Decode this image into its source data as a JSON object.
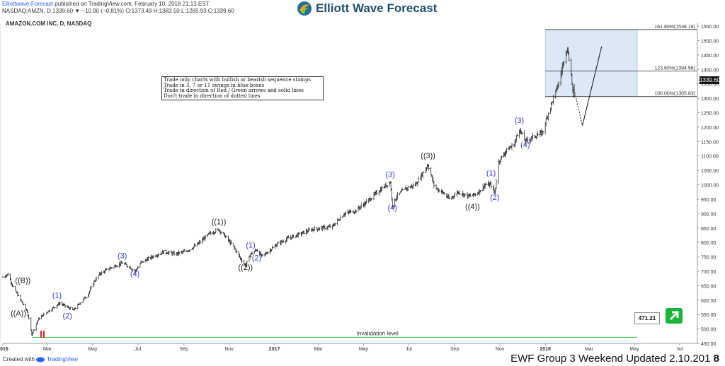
{
  "header": {
    "publisher": "Elliottwave-Forecast",
    "published_text": " published on TradingView.com, February 10, 2018 21:13 EST",
    "ohlc": "NASDAQ:AMZN, D  1339.60  ▼ −10.90 (−0.81%)  O:1373.49  H:1383.50  L:1265.93  C:1339.60",
    "symbol_title": "AMAZON.COM INC, D, NASDAQ"
  },
  "logo": {
    "text": "Elliott Wave Forecast",
    "icon": "ewf-swirl-logo-icon"
  },
  "notes": [
    "Trade only charts with bullish or bearish sequence stamps",
    "Trade in 3, 7 or 11 swings in blue boxes",
    "Trade in direction of Red / Green arrows and solid lines",
    "Don't trade in direction of dotted lines"
  ],
  "current_price": "1339.60",
  "invalidation": {
    "label": "Invalidation level",
    "value": "471.21"
  },
  "footer": {
    "created_with": "Created with",
    "tradingview": "TradingView",
    "update_text": "EWF Group 3 Weekend Updated 2.10.201",
    "page_number": "8"
  },
  "colors": {
    "wave_blue": "#3a3ae0",
    "wave_black": "#222222",
    "box_fill": "#dce8f5",
    "invalidation_line": "#34c234",
    "price_bar": "#111111"
  },
  "chart_data": {
    "type": "ohlc",
    "title": "AMAZON.COM INC, D, NASDAQ",
    "ylim": [
      450,
      1560
    ],
    "y_ticks": [
      450,
      500,
      550,
      600,
      650,
      700,
      750,
      800,
      850,
      900,
      950,
      1000,
      1050,
      1100,
      1150,
      1200,
      1250,
      1300,
      1350,
      1400,
      1450,
      1500,
      1550
    ],
    "x_ticks": [
      "2016",
      "Mar",
      "May",
      "Jul",
      "Sep",
      "Nov",
      "2017",
      "Mar",
      "May",
      "Jul",
      "Sep",
      "Nov",
      "2018",
      "Mar",
      "May",
      "Jul"
    ],
    "x_range": [
      "2016-01-01",
      "2018-07-25"
    ],
    "price_path": [
      [
        "2016-01-01",
        680
      ],
      [
        "2016-01-08",
        690
      ],
      [
        "2016-01-15",
        645
      ],
      [
        "2016-01-25",
        600
      ],
      [
        "2016-02-03",
        560
      ],
      [
        "2016-02-09",
        482
      ],
      [
        "2016-02-12",
        500
      ],
      [
        "2016-02-18",
        535
      ],
      [
        "2016-03-01",
        560
      ],
      [
        "2016-03-10",
        575
      ],
      [
        "2016-03-18",
        590
      ],
      [
        "2016-03-28",
        575
      ],
      [
        "2016-04-05",
        565
      ],
      [
        "2016-04-14",
        590
      ],
      [
        "2016-04-25",
        620
      ],
      [
        "2016-05-02",
        660
      ],
      [
        "2016-05-10",
        690
      ],
      [
        "2016-05-20",
        705
      ],
      [
        "2016-06-01",
        720
      ],
      [
        "2016-06-10",
        728
      ],
      [
        "2016-06-20",
        715
      ],
      [
        "2016-06-27",
        698
      ],
      [
        "2016-07-05",
        730
      ],
      [
        "2016-07-20",
        750
      ],
      [
        "2016-08-05",
        768
      ],
      [
        "2016-08-20",
        760
      ],
      [
        "2016-09-05",
        770
      ],
      [
        "2016-09-20",
        795
      ],
      [
        "2016-10-05",
        830
      ],
      [
        "2016-10-18",
        845
      ],
      [
        "2016-10-27",
        820
      ],
      [
        "2016-11-07",
        785
      ],
      [
        "2016-11-16",
        745
      ],
      [
        "2016-11-23",
        720
      ],
      [
        "2016-11-30",
        760
      ],
      [
        "2016-12-08",
        775
      ],
      [
        "2016-12-15",
        752
      ],
      [
        "2016-12-22",
        765
      ],
      [
        "2017-01-05",
        795
      ],
      [
        "2017-01-20",
        815
      ],
      [
        "2017-02-05",
        830
      ],
      [
        "2017-02-20",
        845
      ],
      [
        "2017-03-05",
        850
      ],
      [
        "2017-03-20",
        855
      ],
      [
        "2017-04-05",
        900
      ],
      [
        "2017-04-20",
        910
      ],
      [
        "2017-05-05",
        940
      ],
      [
        "2017-05-20",
        975
      ],
      [
        "2017-06-06",
        1010
      ],
      [
        "2017-06-09",
        930
      ],
      [
        "2017-06-15",
        960
      ],
      [
        "2017-06-25",
        985
      ],
      [
        "2017-07-10",
        1000
      ],
      [
        "2017-07-27",
        1070
      ],
      [
        "2017-08-05",
        990
      ],
      [
        "2017-08-15",
        975
      ],
      [
        "2017-08-25",
        950
      ],
      [
        "2017-09-05",
        975
      ],
      [
        "2017-09-20",
        960
      ],
      [
        "2017-10-01",
        970
      ],
      [
        "2017-10-12",
        1000
      ],
      [
        "2017-10-20",
        1000
      ],
      [
        "2017-10-25",
        970
      ],
      [
        "2017-10-30",
        1080
      ],
      [
        "2017-11-10",
        1120
      ],
      [
        "2017-11-20",
        1140
      ],
      [
        "2017-11-27",
        1195
      ],
      [
        "2017-12-05",
        1150
      ],
      [
        "2017-12-15",
        1165
      ],
      [
        "2017-12-28",
        1180
      ],
      [
        "2018-01-05",
        1250
      ],
      [
        "2018-01-12",
        1300
      ],
      [
        "2018-01-20",
        1360
      ],
      [
        "2018-01-29",
        1470
      ],
      [
        "2018-02-01",
        1460
      ],
      [
        "2018-02-05",
        1380
      ],
      [
        "2018-02-08",
        1300
      ],
      [
        "2018-02-09",
        1339.6
      ]
    ],
    "fib_box": {
      "x_start": "2018-01-01",
      "x_end": "2018-05-05"
    },
    "fib_levels": [
      {
        "label": "161.80%(1538.18)",
        "value": 1538.18
      },
      {
        "label": "123.60%(1394.56)",
        "value": 1394.56
      },
      {
        "label": "100.00%(1305.83)",
        "value": 1305.83
      }
    ],
    "projection": {
      "dotted": [
        [
          "2018-02-08",
          1339.6
        ],
        [
          "2018-02-20",
          1205
        ]
      ],
      "solid": [
        [
          "2018-02-20",
          1205
        ],
        [
          "2018-03-18",
          1480
        ]
      ]
    },
    "invalidation_level": {
      "value": 471.21,
      "x_start": "2016-02-09",
      "x_end": "2018-05-05"
    },
    "wave_labels": [
      {
        "text": "((B))",
        "x": "2016-01-28",
        "y": 660,
        "color": "black"
      },
      {
        "text": "((A))",
        "x": "2016-01-22",
        "y": 545,
        "color": "black"
      },
      {
        "text": "(1)",
        "x": "2016-03-14",
        "y": 608,
        "color": "blue"
      },
      {
        "text": "(2)",
        "x": "2016-03-28",
        "y": 537,
        "color": "blue"
      },
      {
        "text": "(3)",
        "x": "2016-06-10",
        "y": 745,
        "color": "blue"
      },
      {
        "text": "(4)",
        "x": "2016-06-27",
        "y": 683,
        "color": "blue"
      },
      {
        "text": "((1))",
        "x": "2016-10-18",
        "y": 863,
        "color": "black"
      },
      {
        "text": "(1)",
        "x": "2016-11-30",
        "y": 782,
        "color": "blue"
      },
      {
        "text": "(2)",
        "x": "2016-12-08",
        "y": 738,
        "color": "blue"
      },
      {
        "text": "((2))",
        "x": "2016-11-23",
        "y": 705,
        "color": "black"
      },
      {
        "text": "(3)",
        "x": "2017-06-06",
        "y": 1027,
        "color": "blue"
      },
      {
        "text": "(4)",
        "x": "2017-06-09",
        "y": 912,
        "color": "blue"
      },
      {
        "text": "((3))",
        "x": "2017-07-27",
        "y": 1092,
        "color": "black"
      },
      {
        "text": "((4))",
        "x": "2017-09-25",
        "y": 915,
        "color": "black"
      },
      {
        "text": "(1)",
        "x": "2017-10-20",
        "y": 1032,
        "color": "blue"
      },
      {
        "text": "(2)",
        "x": "2017-10-25",
        "y": 948,
        "color": "blue"
      },
      {
        "text": "(3)",
        "x": "2017-11-27",
        "y": 1215,
        "color": "blue"
      },
      {
        "text": "(4)",
        "x": "2017-12-05",
        "y": 1130,
        "color": "blue"
      }
    ]
  }
}
